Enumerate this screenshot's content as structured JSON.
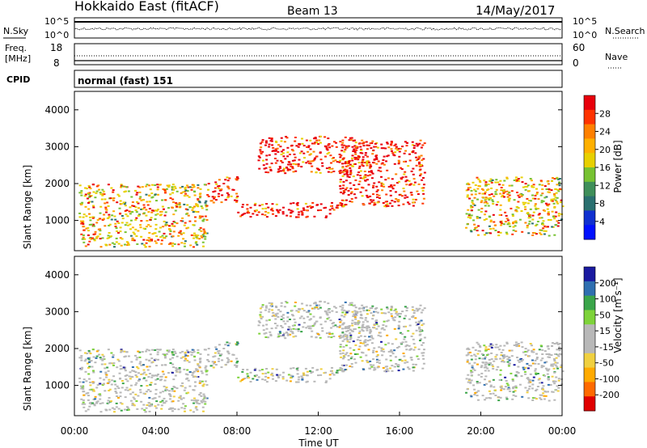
{
  "header": {
    "title": "Hokkaido East (fitACF)",
    "beam": "Beam 13",
    "date": "14/May/2017"
  },
  "noise_panel": {
    "left_label": "N.Sky",
    "left_ticks": [
      "10^5",
      "10^0"
    ],
    "right_label": "N.Search",
    "right_ticks": [
      "10^5",
      "10^0"
    ]
  },
  "freq_panel": {
    "left_label_1": "Freq.",
    "left_label_2": "[MHz]",
    "left_ticks": [
      "18",
      "8"
    ],
    "right_label": "Nave",
    "right_ticks": [
      "60",
      "0"
    ]
  },
  "cpid": {
    "label": "CPID",
    "value": "normal (fast) 151"
  },
  "colors": {
    "background": "#ffffff",
    "axis": "#000000"
  },
  "chart_data": [
    {
      "type": "heatmap",
      "name": "power",
      "ylabel": "Slant Range [km]",
      "yticks": [
        1000,
        2000,
        3000,
        4000
      ],
      "ylim": [
        180,
        4500
      ],
      "xlim": [
        0,
        24
      ],
      "colorbar": {
        "label": "Power [dB]",
        "ticks": [
          "28",
          "24",
          "20",
          "16",
          "12",
          "8",
          "4"
        ],
        "colors": [
          "#e8000b",
          "#ff3300",
          "#ff8000",
          "#ffb000",
          "#e8d000",
          "#77c232",
          "#3f8f5a",
          "#2a7070",
          "#1030d0",
          "#0010ff"
        ]
      },
      "regions": [
        {
          "t": [
            0.2,
            6.5
          ],
          "r": [
            300,
            2000
          ],
          "dominant": "mixed"
        },
        {
          "t": [
            6.5,
            8.0
          ],
          "r": [
            1500,
            2200
          ],
          "dominant": "high"
        },
        {
          "t": [
            8.0,
            13.0
          ],
          "r": [
            1100,
            1500
          ],
          "dominant": "high"
        },
        {
          "t": [
            9.0,
            14.0
          ],
          "r": [
            2300,
            3300
          ],
          "dominant": "high"
        },
        {
          "t": [
            13.0,
            17.2
          ],
          "r": [
            1400,
            3200
          ],
          "dominant": "high"
        },
        {
          "t": [
            19.2,
            24.0
          ],
          "r": [
            600,
            2200
          ],
          "dominant": "mixed"
        }
      ]
    },
    {
      "type": "heatmap",
      "name": "velocity",
      "ylabel": "Slant Range [km]",
      "yticks": [
        1000,
        2000,
        3000,
        4000
      ],
      "ylim": [
        180,
        4500
      ],
      "xlim": [
        0,
        24
      ],
      "xticks": [
        "00:00",
        "04:00",
        "08:00",
        "12:00",
        "16:00",
        "20:00",
        "00:00"
      ],
      "xlabel": "Time UT",
      "colorbar": {
        "label": "Velocity [m s⁻¹]",
        "ticks": [
          "200",
          "100",
          "50",
          "15",
          "-15",
          "-50",
          "-100",
          "-200"
        ],
        "colors": [
          "#1a1aa0",
          "#2f6fb0",
          "#3aa54a",
          "#7ed33a",
          "#b8b8b8",
          "#b8b8b8",
          "#f0d040",
          "#ffaa00",
          "#ff6a00",
          "#e00000"
        ]
      }
    }
  ]
}
